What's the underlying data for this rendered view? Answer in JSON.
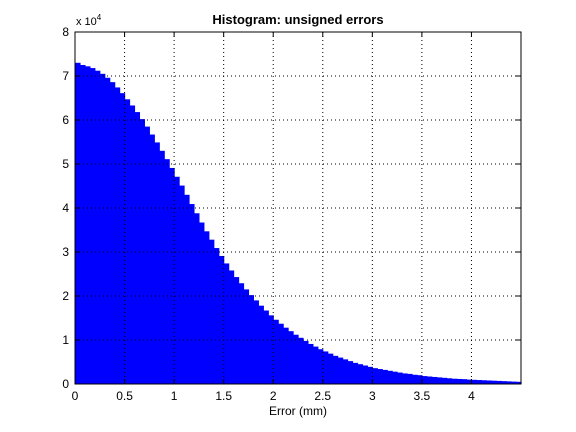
{
  "chart_data": {
    "type": "bar",
    "title": "Histogram: unsigned errors",
    "xlabel": "Error (mm)",
    "ylabel": "",
    "y_scale_label": "x 10",
    "y_scale_exponent": "4",
    "xlim": [
      0,
      4.5
    ],
    "ylim": [
      0,
      8
    ],
    "grid": true,
    "bar_color": "#0000ff",
    "bin_width": 0.05,
    "x_ticks": [
      "0",
      "0.5",
      "1",
      "1.5",
      "2",
      "2.5",
      "3",
      "3.5",
      "4"
    ],
    "y_ticks": [
      "0",
      "1",
      "2",
      "3",
      "4",
      "5",
      "6",
      "7",
      "8"
    ],
    "bins": [
      0.0,
      0.05,
      0.1,
      0.15,
      0.2,
      0.25,
      0.3,
      0.35,
      0.4,
      0.45,
      0.5,
      0.55,
      0.6,
      0.65,
      0.7,
      0.75,
      0.8,
      0.85,
      0.9,
      0.95,
      1.0,
      1.05,
      1.1,
      1.15,
      1.2,
      1.25,
      1.3,
      1.35,
      1.4,
      1.45,
      1.5,
      1.55,
      1.6,
      1.65,
      1.7,
      1.75,
      1.8,
      1.85,
      1.9,
      1.95,
      2.0,
      2.05,
      2.1,
      2.15,
      2.2,
      2.25,
      2.3,
      2.35,
      2.4,
      2.45,
      2.5,
      2.55,
      2.6,
      2.65,
      2.7,
      2.75,
      2.8,
      2.85,
      2.9,
      2.95,
      3.0,
      3.05,
      3.1,
      3.15,
      3.2,
      3.25,
      3.3,
      3.35,
      3.4,
      3.45,
      3.5,
      3.55,
      3.6,
      3.65,
      3.7,
      3.75,
      3.8,
      3.85,
      3.9,
      3.95,
      4.0,
      4.05,
      4.1,
      4.15,
      4.2,
      4.25,
      4.3,
      4.35,
      4.4,
      4.45
    ],
    "values": [
      7.3,
      7.25,
      7.22,
      7.18,
      7.12,
      7.05,
      6.96,
      6.86,
      6.74,
      6.61,
      6.47,
      6.33,
      6.18,
      6.02,
      5.85,
      5.67,
      5.49,
      5.3,
      5.11,
      4.91,
      4.71,
      4.51,
      4.3,
      4.09,
      3.88,
      3.67,
      3.47,
      3.28,
      3.09,
      2.91,
      2.74,
      2.58,
      2.43,
      2.29,
      2.15,
      2.02,
      1.9,
      1.78,
      1.67,
      1.56,
      1.46,
      1.37,
      1.28,
      1.2,
      1.12,
      1.05,
      0.98,
      0.91,
      0.85,
      0.79,
      0.74,
      0.69,
      0.64,
      0.6,
      0.56,
      0.52,
      0.48,
      0.45,
      0.42,
      0.39,
      0.36,
      0.34,
      0.32,
      0.3,
      0.28,
      0.26,
      0.24,
      0.23,
      0.21,
      0.2,
      0.18,
      0.17,
      0.16,
      0.15,
      0.14,
      0.13,
      0.12,
      0.115,
      0.11,
      0.1,
      0.095,
      0.09,
      0.085,
      0.08,
      0.075,
      0.07,
      0.065,
      0.06,
      0.055,
      0.05
    ]
  }
}
